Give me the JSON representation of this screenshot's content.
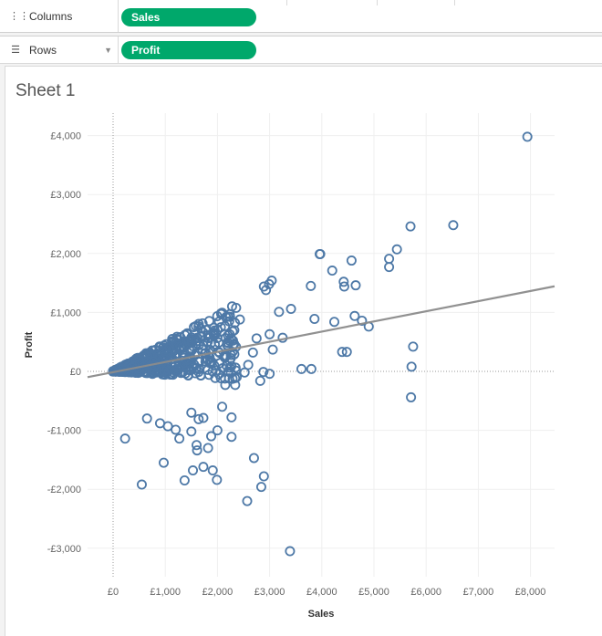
{
  "shelves": {
    "columns": {
      "label": "Columns",
      "icon": "columns-icon",
      "pill": "Sales"
    },
    "rows": {
      "label": "Rows",
      "icon": "rows-icon",
      "pill": "Profit"
    },
    "pill_color": "#00a86b"
  },
  "sheet": {
    "title": "Sheet 1"
  },
  "chart_data": {
    "type": "scatter",
    "xlabel": "Sales",
    "ylabel": "Profit",
    "xlim": [
      -500,
      8500
    ],
    "ylim": [
      -3500,
      4400
    ],
    "x_ticks": [
      0,
      1000,
      2000,
      3000,
      4000,
      5000,
      6000,
      7000,
      8000
    ],
    "x_tick_labels": [
      "£0",
      "£1,000",
      "£2,000",
      "£3,000",
      "£4,000",
      "£5,000",
      "£6,000",
      "£7,000",
      "£8,000"
    ],
    "y_ticks": [
      4000,
      3000,
      2000,
      1000,
      0,
      -1000,
      -2000,
      -3000
    ],
    "y_tick_labels": [
      "£4,000",
      "£3,000",
      "£2,000",
      "£1,000",
      "£0",
      "-£1,000",
      "-£2,000",
      "-£3,000"
    ],
    "marker_color": "#4e79a7",
    "trend_color": "#8c8c8c",
    "trend_line": {
      "x": [
        -500,
        8500
      ],
      "y": [
        -100,
        1450
      ]
    },
    "points": [
      [
        7940,
        3980
      ],
      [
        6520,
        2480
      ],
      [
        5700,
        2460
      ],
      [
        5440,
        2070
      ],
      [
        4570,
        1880
      ],
      [
        5290,
        1910
      ],
      [
        5290,
        1770
      ],
      [
        3960,
        1990
      ],
      [
        3970,
        1990
      ],
      [
        4200,
        1710
      ],
      [
        4420,
        1520
      ],
      [
        4650,
        1460
      ],
      [
        4430,
        1440
      ],
      [
        3790,
        1450
      ],
      [
        3040,
        1540
      ],
      [
        2890,
        1440
      ],
      [
        3180,
        1010
      ],
      [
        2990,
        1480
      ],
      [
        2930,
        1380
      ],
      [
        3410,
        1060
      ],
      [
        3860,
        890
      ],
      [
        4240,
        840
      ],
      [
        4630,
        940
      ],
      [
        4770,
        860
      ],
      [
        4900,
        760
      ],
      [
        5750,
        420
      ],
      [
        4390,
        330
      ],
      [
        4480,
        330
      ],
      [
        5720,
        80
      ],
      [
        5710,
        -440
      ],
      [
        3610,
        40
      ],
      [
        3800,
        40
      ],
      [
        3390,
        -3050
      ],
      [
        2570,
        -2200
      ],
      [
        2840,
        -1960
      ],
      [
        2890,
        -1780
      ],
      [
        2700,
        -1470
      ],
      [
        1990,
        -1840
      ],
      [
        1910,
        -1680
      ],
      [
        1730,
        -1620
      ],
      [
        1530,
        -1680
      ],
      [
        1370,
        -1850
      ],
      [
        970,
        -1550
      ],
      [
        550,
        -1920
      ],
      [
        230,
        -1140
      ],
      [
        2270,
        -1110
      ],
      [
        1820,
        -1300
      ],
      [
        1600,
        -1250
      ],
      [
        1610,
        -1340
      ],
      [
        1880,
        -1100
      ],
      [
        2000,
        -1000
      ],
      [
        1270,
        -1140
      ],
      [
        1500,
        -1020
      ],
      [
        1730,
        -790
      ],
      [
        1640,
        -810
      ],
      [
        2090,
        -600
      ],
      [
        2270,
        -780
      ],
      [
        1200,
        -990
      ],
      [
        1050,
        -930
      ],
      [
        900,
        -880
      ],
      [
        650,
        -800
      ],
      [
        1500,
        -700
      ],
      [
        2150,
        -230
      ],
      [
        2340,
        -230
      ],
      [
        2820,
        -160
      ],
      [
        3000,
        -40
      ],
      [
        2590,
        110
      ],
      [
        2880,
        -10
      ],
      [
        3250,
        570
      ],
      [
        3000,
        630
      ],
      [
        2750,
        560
      ],
      [
        3060,
        370
      ],
      [
        2520,
        -20
      ],
      [
        2680,
        320
      ],
      [
        2230,
        520
      ],
      [
        2430,
        880
      ],
      [
        1000,
        200
      ],
      [
        1200,
        300
      ],
      [
        800,
        100
      ],
      [
        600,
        0
      ],
      [
        1500,
        500
      ],
      [
        1700,
        600
      ],
      [
        2000,
        700
      ]
    ]
  }
}
